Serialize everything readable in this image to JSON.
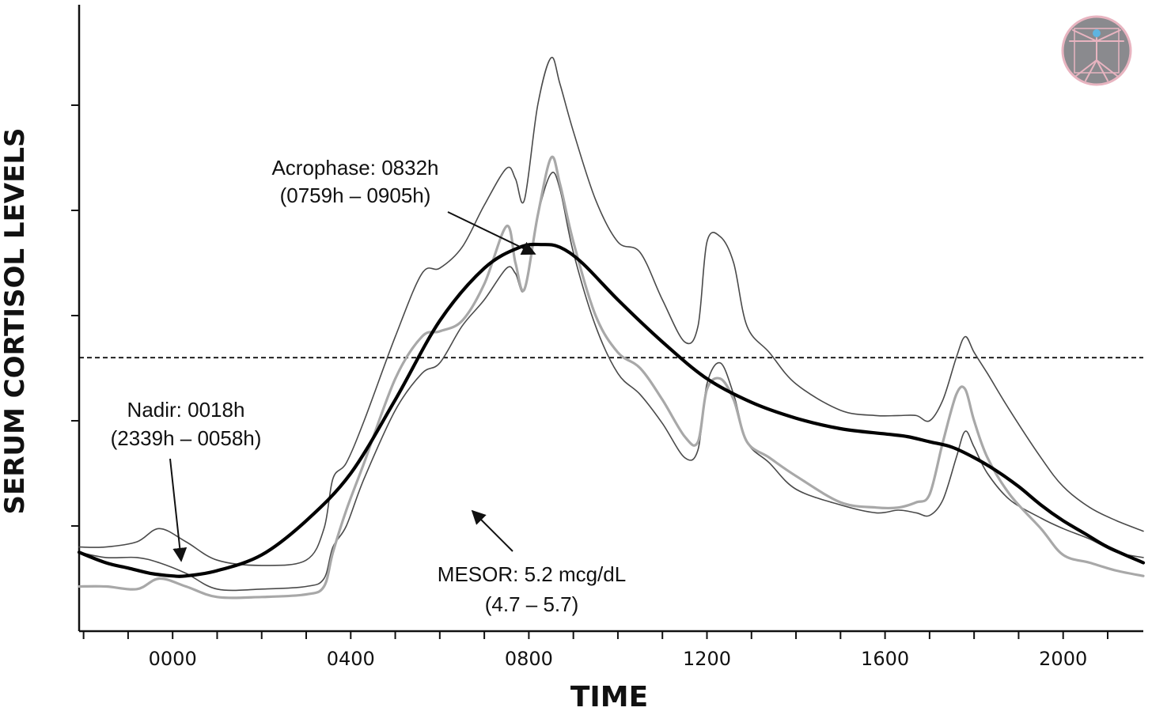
{
  "colors": {
    "mean_line": "#000000",
    "bound_lines": "#4a4a4a",
    "raw_series": "#a8a8a8",
    "mesor_line": "#111111",
    "logo_fill": "#8a8a8e",
    "logo_ring": "#e8b4c0"
  },
  "logo": {
    "icon": "vitruvian-man-icon"
  },
  "chart_data": {
    "type": "line",
    "xlabel": "TIME",
    "ylabel": "SERUM CORTISOL LEVELS",
    "x_tick_labels": [
      "0000",
      "0400",
      "0800",
      "1200",
      "1600",
      "2000"
    ],
    "x_tick_values": [
      0,
      4,
      8,
      12,
      16,
      20
    ],
    "xlim": [
      -2.1,
      21.8
    ],
    "ylim": [
      0,
      12
    ],
    "y_ticks": [
      2,
      4,
      6,
      8,
      10
    ],
    "mesor_value": 5.2,
    "series": [
      {
        "x": [
          -2.1,
          -1.5,
          -0.8,
          -0.3,
          0.3,
          1.0,
          2.0,
          3.0,
          3.4,
          3.6,
          3.9,
          4.3,
          5.0,
          5.6,
          6.0,
          6.5,
          7.0,
          7.5,
          7.7,
          7.9,
          8.2,
          8.5,
          8.7,
          9.0,
          9.5,
          10.0,
          10.5,
          11.0,
          11.5,
          11.8,
          12.0,
          12.3,
          12.6,
          12.9,
          13.4,
          14.0,
          15.0,
          15.8,
          16.3,
          16.7,
          17.0,
          17.3,
          17.6,
          17.8,
          18.0,
          18.3,
          18.8,
          19.5,
          20.0,
          20.6,
          21.2,
          21.8
        ],
        "y": [
          1.6,
          1.6,
          1.7,
          1.95,
          1.7,
          1.35,
          1.25,
          1.35,
          1.95,
          2.9,
          3.2,
          4.0,
          5.6,
          6.8,
          6.9,
          7.3,
          8.1,
          8.8,
          8.6,
          8.2,
          10.0,
          10.9,
          10.4,
          9.5,
          8.2,
          7.4,
          7.2,
          6.3,
          5.5,
          5.8,
          7.4,
          7.5,
          7.0,
          5.8,
          5.3,
          4.7,
          4.2,
          4.1,
          4.1,
          4.1,
          4.0,
          4.4,
          5.2,
          5.6,
          5.3,
          4.9,
          4.2,
          3.3,
          2.75,
          2.35,
          2.1,
          1.9
        ]
      },
      {
        "x": [
          -2.1,
          -1.5,
          -0.8,
          -0.3,
          0.3,
          1.0,
          2.0,
          3.0,
          3.4,
          3.6,
          3.9,
          4.3,
          5.0,
          5.6,
          6.0,
          6.5,
          7.0,
          7.5,
          7.7,
          7.9,
          8.2,
          8.5,
          8.7,
          9.0,
          9.5,
          10.0,
          10.5,
          11.0,
          11.5,
          11.8,
          12.0,
          12.3,
          12.6,
          12.9,
          13.4,
          14.0,
          15.0,
          15.8,
          16.3,
          16.7,
          17.0,
          17.3,
          17.6,
          17.8,
          18.0,
          18.3,
          18.8,
          19.5,
          20.0,
          20.6,
          21.2,
          21.8
        ],
        "y": [
          1.5,
          1.4,
          1.4,
          1.3,
          1.1,
          0.8,
          0.8,
          0.85,
          1.0,
          1.6,
          2.0,
          2.9,
          4.2,
          4.9,
          5.1,
          5.8,
          6.3,
          6.9,
          6.8,
          6.5,
          7.9,
          8.7,
          8.4,
          7.2,
          5.8,
          4.9,
          4.5,
          3.95,
          3.3,
          3.45,
          4.7,
          5.1,
          4.5,
          3.6,
          3.2,
          2.7,
          2.4,
          2.25,
          2.3,
          2.25,
          2.2,
          2.5,
          3.3,
          3.8,
          3.5,
          3.0,
          2.5,
          2.15,
          1.95,
          1.75,
          1.5,
          1.4
        ]
      },
      {
        "x": [
          -2.1,
          -1.5,
          -0.8,
          -0.3,
          0.3,
          1.0,
          2.0,
          3.0,
          3.4,
          3.6,
          3.9,
          4.3,
          5.0,
          5.6,
          6.0,
          6.5,
          7.0,
          7.5,
          7.7,
          7.9,
          8.2,
          8.5,
          8.7,
          9.0,
          9.5,
          10.0,
          10.5,
          11.0,
          11.5,
          11.8,
          12.0,
          12.3,
          12.6,
          12.9,
          13.4,
          14.0,
          15.0,
          15.8,
          16.3,
          16.7,
          17.0,
          17.3,
          17.6,
          17.8,
          18.0,
          18.3,
          18.8,
          19.5,
          20.0,
          20.6,
          21.2,
          21.8
        ],
        "y": [
          0.85,
          0.85,
          0.8,
          1.0,
          0.85,
          0.65,
          0.65,
          0.7,
          0.85,
          1.5,
          2.3,
          3.2,
          4.8,
          5.6,
          5.7,
          5.9,
          6.6,
          7.7,
          7.0,
          6.5,
          7.9,
          9.0,
          8.5,
          7.4,
          6.0,
          5.3,
          5.0,
          4.4,
          3.7,
          3.6,
          4.6,
          4.8,
          4.4,
          3.6,
          3.3,
          2.95,
          2.45,
          2.35,
          2.35,
          2.45,
          2.6,
          3.6,
          4.5,
          4.6,
          4.0,
          3.3,
          2.6,
          1.95,
          1.45,
          1.3,
          1.15,
          1.05
        ]
      },
      {
        "x": [
          -2.1,
          -1.5,
          -1.0,
          -0.5,
          0.0,
          0.3,
          1.0,
          2.0,
          3.0,
          4.0,
          5.0,
          6.0,
          7.0,
          7.8,
          8.3,
          8.7,
          9.2,
          10.0,
          11.0,
          12.0,
          13.0,
          14.0,
          15.0,
          16.0,
          16.5,
          17.0,
          17.5,
          18.0,
          18.5,
          19.0,
          19.5,
          20.0,
          20.5,
          21.0,
          21.8
        ],
        "y": [
          1.5,
          1.3,
          1.2,
          1.1,
          1.05,
          1.05,
          1.15,
          1.45,
          2.1,
          3.0,
          4.4,
          5.9,
          6.9,
          7.3,
          7.35,
          7.3,
          7.0,
          6.3,
          5.5,
          4.8,
          4.35,
          4.05,
          3.85,
          3.75,
          3.7,
          3.6,
          3.5,
          3.3,
          3.05,
          2.75,
          2.4,
          2.1,
          1.85,
          1.6,
          1.3
        ]
      }
    ],
    "annotations": [
      {
        "line1": "Acrophase: 0832h",
        "line2": "(0759h – 0905h)"
      },
      {
        "line1": "Nadir: 0018h",
        "line2": "(2339h – 0058h)"
      },
      {
        "line1": "MESOR: 5.2 mcg/dL",
        "line2": "(4.7 – 5.7)"
      }
    ]
  }
}
